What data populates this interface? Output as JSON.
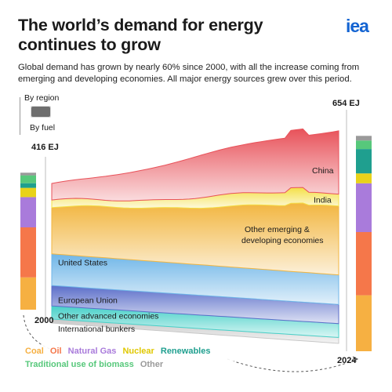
{
  "header": {
    "title": "The world’s demand for energy continues to grow",
    "logo": "iea",
    "subtitle": "Global demand has grown by nearly 60% since 2000, with all the increase coming from emerging and developing economies. All major energy sources grew over this period."
  },
  "toggle": {
    "option_region": "By region",
    "option_fuel": "By fuel"
  },
  "legend": {
    "items": [
      {
        "label": "Coal",
        "color": "#f6b042"
      },
      {
        "label": "Oil",
        "color": "#f5774a"
      },
      {
        "label": "Natural Gas",
        "color": "#a97bdb"
      },
      {
        "label": "Nuclear",
        "color": "#e8d21a"
      },
      {
        "label": "Renewables",
        "color": "#1f9f8f"
      },
      {
        "label": "Traditional use of biomass",
        "color": "#57c87b"
      },
      {
        "label": "Other",
        "color": "#9a9a9a"
      }
    ]
  },
  "chart_data": {
    "type": "area",
    "x_start_label": "2000",
    "x_end_label": "2024",
    "start_total_label": "416 EJ",
    "end_total_label": "654 EJ",
    "start_total": 416,
    "end_total": 654,
    "series_by_region": [
      {
        "name": "International bunkers",
        "start": 12,
        "end": 18,
        "color": "#c8c8c8"
      },
      {
        "name": "Other advanced economies",
        "start": 40,
        "end": 42,
        "color": "#48d0c8"
      },
      {
        "name": "European Union",
        "start": 62,
        "end": 58,
        "color": "#5b6ec9"
      },
      {
        "name": "United States",
        "start": 96,
        "end": 90,
        "color": "#6fb6e8"
      },
      {
        "name": "Other emerging & developing economies",
        "start": 140,
        "end": 210,
        "color": "#f2b640"
      },
      {
        "name": "India",
        "start": 18,
        "end": 42,
        "color": "#f4e048"
      },
      {
        "name": "China",
        "start": 48,
        "end": 194,
        "color": "#e8525a"
      }
    ],
    "fuel_2000": [
      {
        "name": "Coal",
        "value": 98
      },
      {
        "name": "Oil",
        "value": 152
      },
      {
        "name": "Natural Gas",
        "value": 92
      },
      {
        "name": "Nuclear",
        "value": 28
      },
      {
        "name": "Renewables",
        "value": 14
      },
      {
        "name": "Traditional use of biomass",
        "value": 24
      },
      {
        "name": "Other",
        "value": 8
      }
    ],
    "fuel_2024": [
      {
        "name": "Coal",
        "value": 170
      },
      {
        "name": "Oil",
        "value": 192
      },
      {
        "name": "Natural Gas",
        "value": 148
      },
      {
        "name": "Nuclear",
        "value": 30
      },
      {
        "name": "Renewables",
        "value": 74
      },
      {
        "name": "Traditional use of biomass",
        "value": 26
      },
      {
        "name": "Other",
        "value": 14
      }
    ],
    "fuel_colors": {
      "Coal": "#f6b042",
      "Oil": "#f5774a",
      "Natural Gas": "#a97bdb",
      "Nuclear": "#e8d21a",
      "Renewables": "#1f9f8f",
      "Traditional use of biomass": "#57c87b",
      "Other": "#9a9a9a"
    }
  }
}
